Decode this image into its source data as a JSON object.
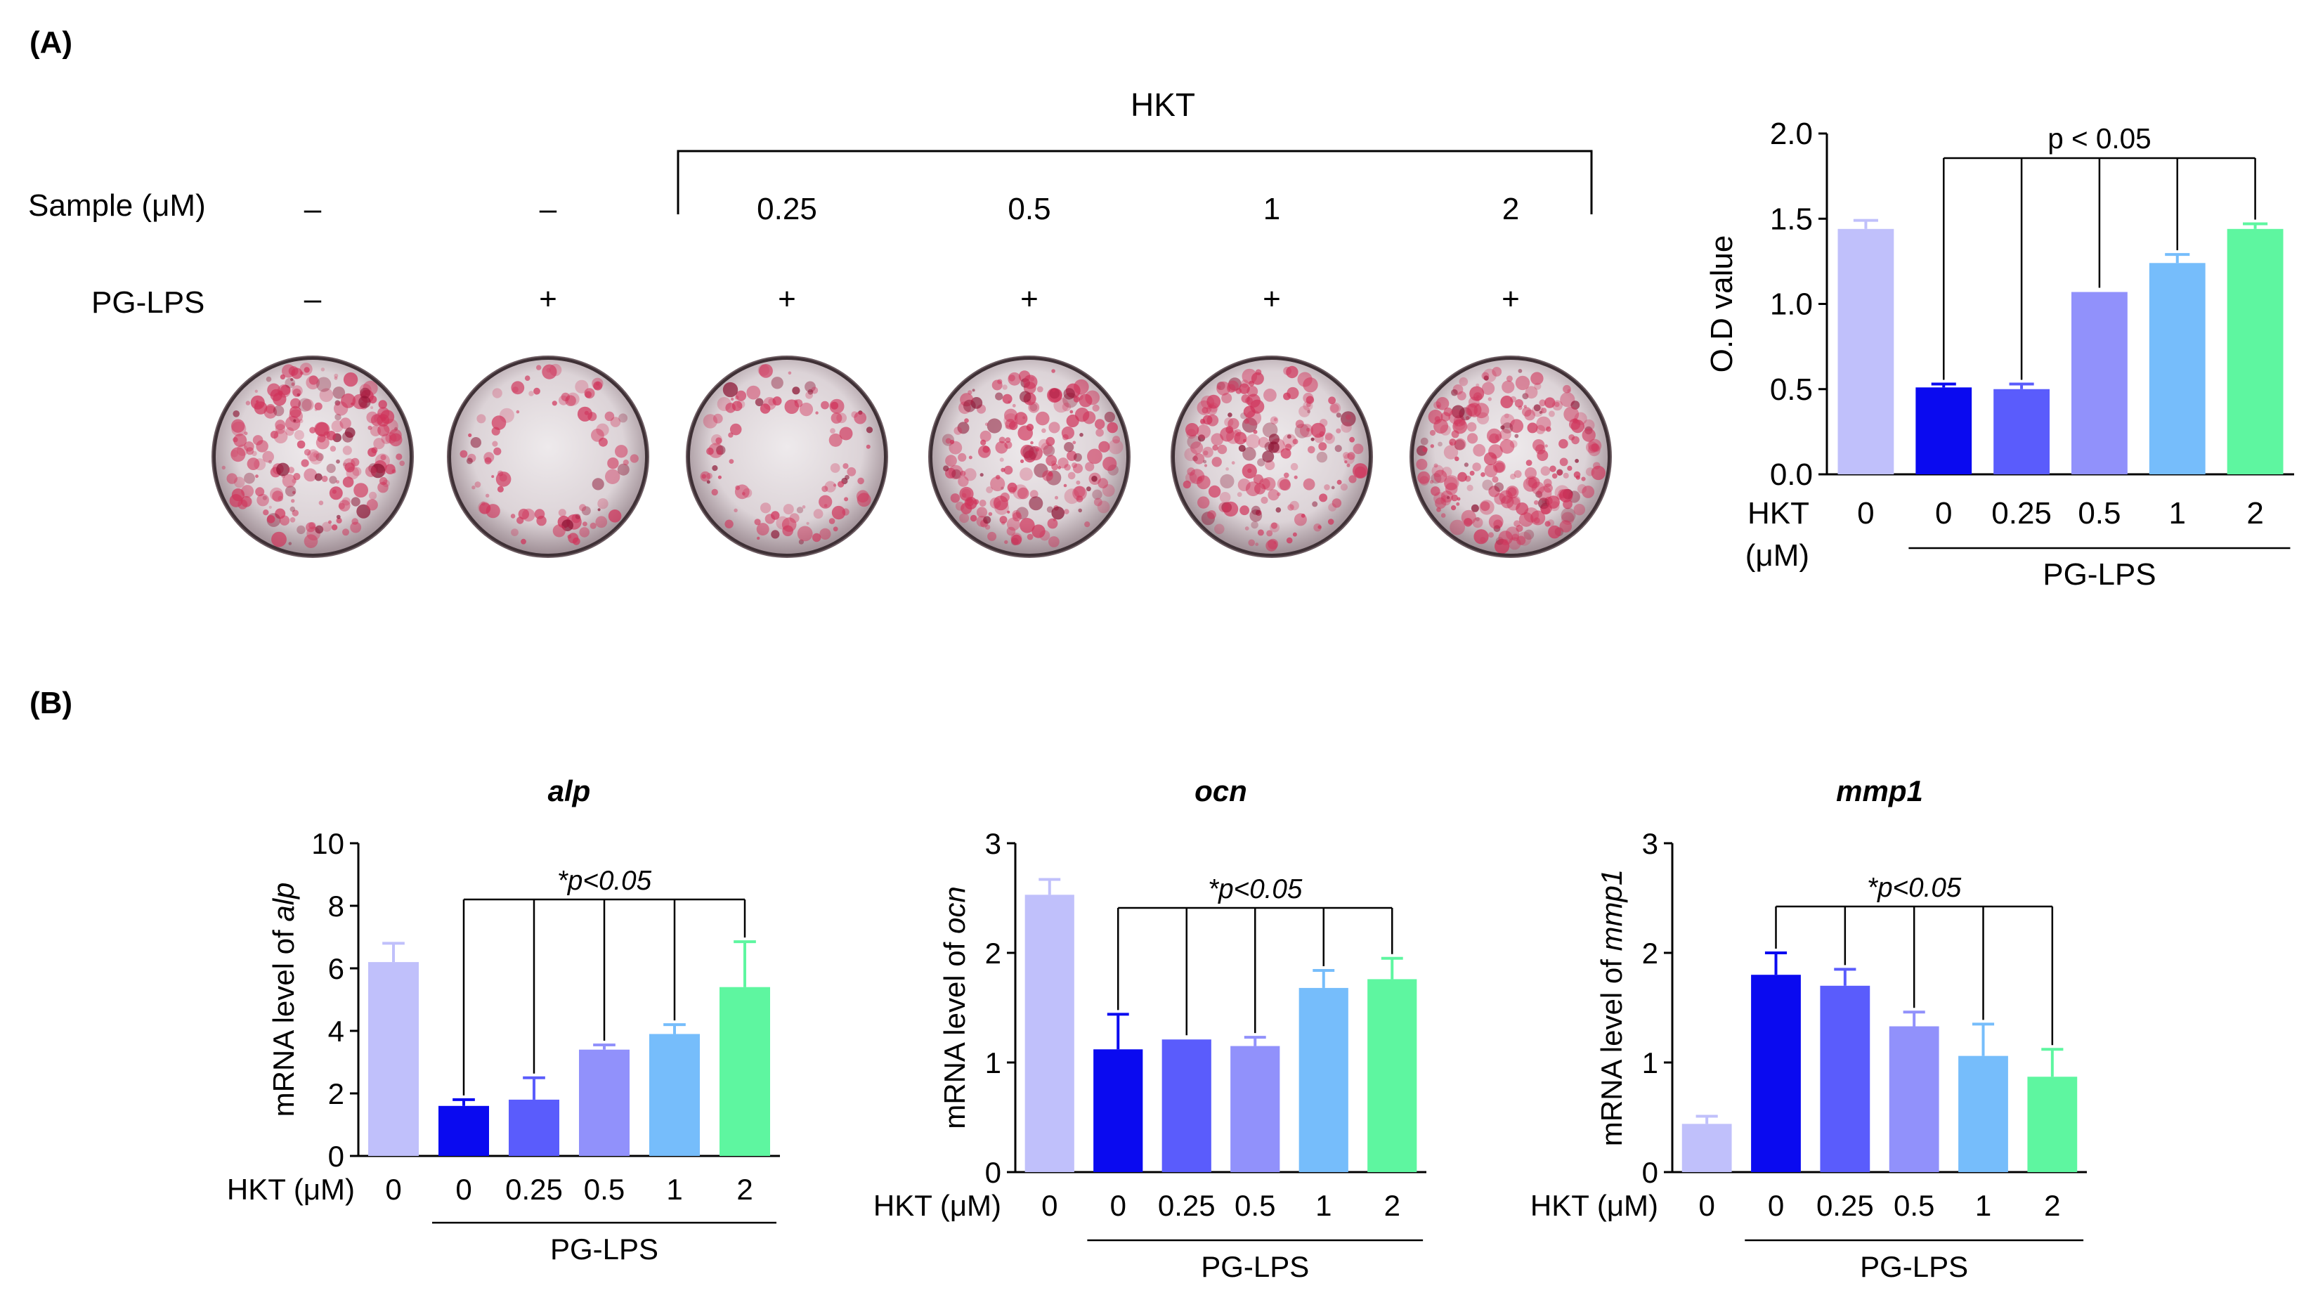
{
  "panel_a": {
    "label": "(A)",
    "hkt_label": "HKT",
    "sample_row_label": "Sample  (μM)",
    "lps_row_label": "PG-LPS",
    "sample_values": [
      "–",
      "–",
      "0.25",
      "0.5",
      "1",
      "2"
    ],
    "lps_values": [
      "–",
      "+",
      "+",
      "+",
      "+",
      "+"
    ]
  },
  "panel_b": {
    "label": "(B)"
  },
  "colors": [
    "#c0c0fb",
    "#0a0af0",
    "#5a5cfc",
    "#9191fb",
    "#76bdfb",
    "#5ef6a0"
  ],
  "chart_data": [
    {
      "id": "od",
      "type": "bar",
      "title": "",
      "ylabel": "O.D value",
      "xlabel_prefix": "HKT",
      "xlabel_unit": "(μM)",
      "categories": [
        "0",
        "0",
        "0.25",
        "0.5",
        "1",
        "2"
      ],
      "values": [
        1.44,
        0.51,
        0.5,
        1.07,
        1.24,
        1.44
      ],
      "errors": [
        0.05,
        0.02,
        0.03,
        0.0,
        0.05,
        0.03
      ],
      "ylim": [
        0,
        2.0
      ],
      "yticks": [
        "0.0",
        "0.5",
        "1.0",
        "1.5",
        "2.0"
      ],
      "group_label": "PG-LPS",
      "annotation": "p < 0.05"
    },
    {
      "id": "alp",
      "type": "bar",
      "title": "alp",
      "ylabel_text": "mRNA level of ",
      "ylabel_gene": "alp",
      "xlabel": "HKT (μM)",
      "categories": [
        "0",
        "0",
        "0.25",
        "0.5",
        "1",
        "2"
      ],
      "values": [
        6.2,
        1.6,
        1.8,
        3.4,
        3.9,
        5.4
      ],
      "errors": [
        0.6,
        0.2,
        0.7,
        0.15,
        0.3,
        1.45
      ],
      "ylim": [
        0,
        10
      ],
      "yticks": [
        "0",
        "2",
        "4",
        "6",
        "8",
        "10"
      ],
      "group_label": "PG-LPS",
      "annotation": "*p<0.05"
    },
    {
      "id": "ocn",
      "type": "bar",
      "title": "ocn",
      "ylabel_text": "mRNA level of ",
      "ylabel_gene": "ocn",
      "xlabel": "HKT (μM)",
      "categories": [
        "0",
        "0",
        "0.25",
        "0.5",
        "1",
        "2"
      ],
      "values": [
        2.53,
        1.12,
        1.21,
        1.15,
        1.68,
        1.76
      ],
      "errors": [
        0.14,
        0.32,
        0.0,
        0.08,
        0.16,
        0.19
      ],
      "ylim": [
        0,
        3
      ],
      "yticks": [
        "0",
        "1",
        "2",
        "3"
      ],
      "group_label": "PG-LPS",
      "annotation": "*p<0.05"
    },
    {
      "id": "mmp1",
      "type": "bar",
      "title": "mmp1",
      "ylabel_text": "mRNA level of ",
      "ylabel_gene": "mmp1",
      "xlabel": "HKT (μM)",
      "categories": [
        "0",
        "0",
        "0.25",
        "0.5",
        "1",
        "2"
      ],
      "values": [
        0.44,
        1.8,
        1.7,
        1.33,
        1.06,
        0.87
      ],
      "errors": [
        0.07,
        0.2,
        0.15,
        0.13,
        0.29,
        0.25
      ],
      "ylim": [
        0,
        3
      ],
      "yticks": [
        "0",
        "1",
        "2",
        "3"
      ],
      "group_label": "PG-LPS",
      "annotation": "*p<0.05"
    }
  ]
}
